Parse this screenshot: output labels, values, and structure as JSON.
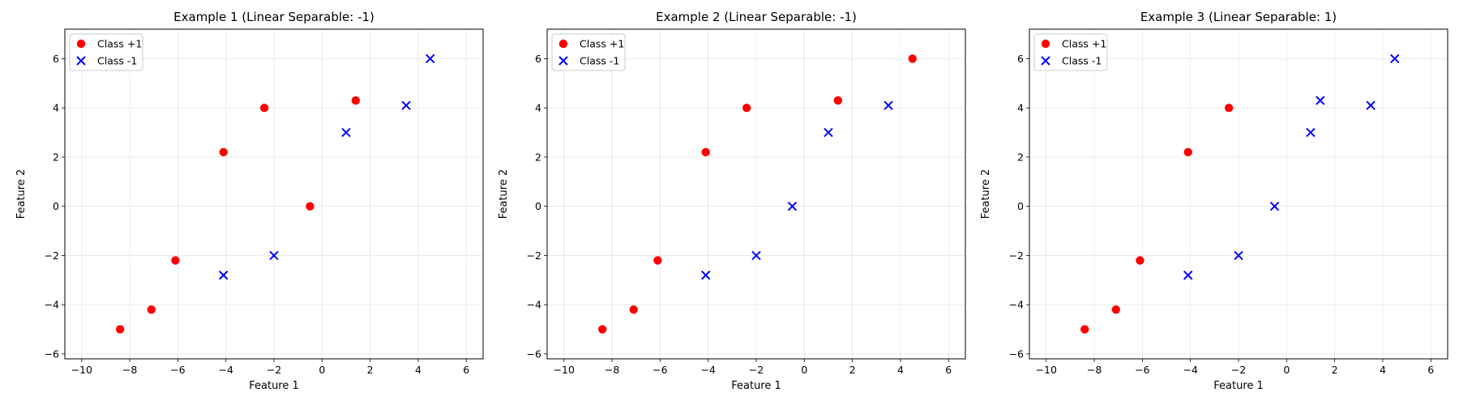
{
  "chart_data": [
    {
      "type": "scatter",
      "title": "Example 1 (Linear Separable: -1)",
      "xlabel": "Feature 1",
      "ylabel": "Feature 2",
      "xlim": [
        -10.7,
        6.7
      ],
      "ylim": [
        -6.2,
        7.2
      ],
      "xticks": [
        -10,
        -8,
        -6,
        -4,
        -2,
        0,
        2,
        4,
        6
      ],
      "yticks": [
        -6,
        -4,
        -2,
        0,
        2,
        4,
        6
      ],
      "grid": true,
      "legend": "top-left",
      "series": [
        {
          "name": "Class +1",
          "marker": "circle",
          "color": "#ff0000",
          "points": [
            [
              -8.4,
              -5
            ],
            [
              -7.1,
              -4.2
            ],
            [
              -6.1,
              -2.2
            ],
            [
              -4.1,
              2.2
            ],
            [
              -2.4,
              4
            ],
            [
              -0.5,
              0
            ],
            [
              1.4,
              4.3
            ]
          ]
        },
        {
          "name": "Class -1",
          "marker": "x",
          "color": "#0000ff",
          "points": [
            [
              -4.1,
              -2.8
            ],
            [
              -2,
              -2
            ],
            [
              1,
              3
            ],
            [
              3.5,
              4.1
            ],
            [
              4.5,
              6
            ]
          ]
        }
      ]
    },
    {
      "type": "scatter",
      "title": "Example 2 (Linear Separable: -1)",
      "xlabel": "Feature 1",
      "ylabel": "Feature 2",
      "xlim": [
        -10.7,
        6.7
      ],
      "ylim": [
        -6.2,
        7.2
      ],
      "xticks": [
        -10,
        -8,
        -6,
        -4,
        -2,
        0,
        2,
        4,
        6
      ],
      "yticks": [
        -6,
        -4,
        -2,
        0,
        2,
        4,
        6
      ],
      "grid": true,
      "legend": "top-left",
      "series": [
        {
          "name": "Class +1",
          "marker": "circle",
          "color": "#ff0000",
          "points": [
            [
              -8.4,
              -5
            ],
            [
              -7.1,
              -4.2
            ],
            [
              -6.1,
              -2.2
            ],
            [
              -4.1,
              2.2
            ],
            [
              -2.4,
              4
            ],
            [
              1.4,
              4.3
            ],
            [
              4.5,
              6
            ]
          ]
        },
        {
          "name": "Class -1",
          "marker": "x",
          "color": "#0000ff",
          "points": [
            [
              -4.1,
              -2.8
            ],
            [
              -2,
              -2
            ],
            [
              -0.5,
              0
            ],
            [
              1,
              3
            ],
            [
              3.5,
              4.1
            ]
          ]
        }
      ]
    },
    {
      "type": "scatter",
      "title": "Example 3 (Linear Separable: 1)",
      "xlabel": "Feature 1",
      "ylabel": "Feature 2",
      "xlim": [
        -10.7,
        6.7
      ],
      "ylim": [
        -6.2,
        7.2
      ],
      "xticks": [
        -10,
        -8,
        -6,
        -4,
        -2,
        0,
        2,
        4,
        6
      ],
      "yticks": [
        -6,
        -4,
        -2,
        0,
        2,
        4,
        6
      ],
      "grid": true,
      "legend": "top-left",
      "series": [
        {
          "name": "Class +1",
          "marker": "circle",
          "color": "#ff0000",
          "points": [
            [
              -8.4,
              -5
            ],
            [
              -7.1,
              -4.2
            ],
            [
              -6.1,
              -2.2
            ],
            [
              -4.1,
              2.2
            ],
            [
              -2.4,
              4
            ]
          ]
        },
        {
          "name": "Class -1",
          "marker": "x",
          "color": "#0000ff",
          "points": [
            [
              -4.1,
              -2.8
            ],
            [
              -2,
              -2
            ],
            [
              -0.5,
              0
            ],
            [
              1,
              3
            ],
            [
              1.4,
              4.3
            ],
            [
              3.5,
              4.1
            ],
            [
              4.5,
              6
            ]
          ]
        }
      ]
    }
  ]
}
